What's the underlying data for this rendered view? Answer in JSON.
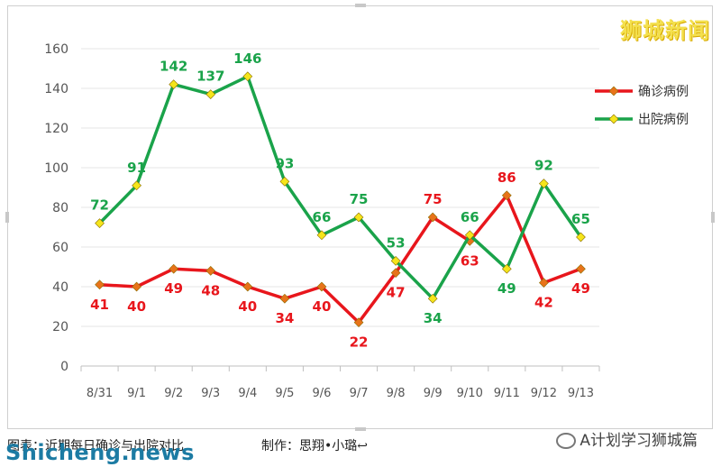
{
  "watermark_top": "狮城新闻",
  "caption": "图表：近期每日确诊与出院对比",
  "credit": "制作：思翔•小璐↩",
  "wechat_label": "A计划学习狮城篇",
  "site_watermark": "Shicheng.news",
  "chart_data": {
    "type": "line",
    "categories": [
      "8/31",
      "9/1",
      "9/2",
      "9/3",
      "9/4",
      "9/5",
      "9/6",
      "9/7",
      "9/8",
      "9/9",
      "9/10",
      "9/11",
      "9/12",
      "9/13"
    ],
    "ylim": [
      0,
      160
    ],
    "yticks": [
      0,
      20,
      40,
      60,
      80,
      100,
      120,
      140,
      160
    ],
    "grid": true,
    "legend_position": "top-right",
    "series": [
      {
        "name": "确诊病例",
        "color": "#e8161c",
        "marker_color": "#e8731a",
        "values": [
          41,
          40,
          49,
          48,
          40,
          34,
          40,
          22,
          47,
          75,
          63,
          86,
          42,
          49
        ]
      },
      {
        "name": "出院病例",
        "color": "#1aa34a",
        "marker_color": "#f5e51b",
        "values": [
          72,
          91,
          142,
          137,
          146,
          93,
          66,
          75,
          53,
          34,
          66,
          49,
          92,
          65
        ]
      }
    ]
  }
}
